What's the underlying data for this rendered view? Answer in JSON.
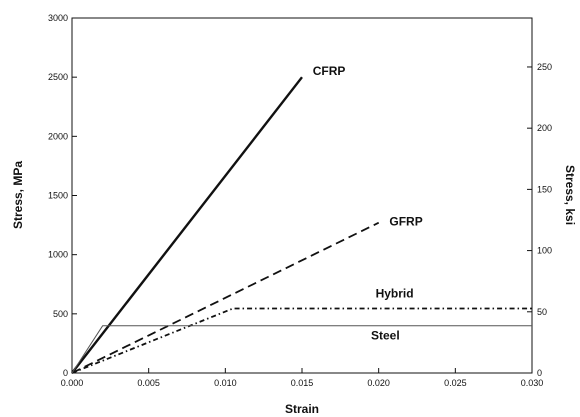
{
  "chart_data": {
    "type": "line",
    "title": "",
    "xlabel": "Strain",
    "ylabel": "Stress, MPa",
    "ylabel_right": "Stress, ksi",
    "xlim": [
      0,
      0.03
    ],
    "ylim": [
      0,
      3000
    ],
    "ylim_right": [
      0,
      290
    ],
    "x_ticks": [
      0,
      0.005,
      0.01,
      0.015,
      0.02,
      0.025,
      0.03
    ],
    "x_tick_labels": [
      "0.000",
      "0.005",
      "0.010",
      "0.015",
      "0.020",
      "0.025",
      "0.030"
    ],
    "y_ticks": [
      0,
      500,
      1000,
      1500,
      2000,
      2500,
      3000
    ],
    "y_tick_labels": [
      "0",
      "500",
      "1000",
      "1500",
      "2000",
      "2500",
      "3000"
    ],
    "y_right_ticks": [
      0,
      50,
      100,
      150,
      200,
      250
    ],
    "y_right_tick_labels": [
      "0",
      "50",
      "100",
      "150",
      "200",
      "250"
    ],
    "grid": false,
    "legend": "none",
    "series": [
      {
        "name": "CFRP",
        "style": "solid-bold",
        "color": "#111111",
        "points": [
          [
            0,
            0
          ],
          [
            0.015,
            2500
          ]
        ]
      },
      {
        "name": "GFRP",
        "style": "dashed",
        "color": "#111111",
        "points": [
          [
            0,
            0
          ],
          [
            0.02,
            1270
          ]
        ]
      },
      {
        "name": "Hybrid",
        "style": "dash-dot",
        "color": "#111111",
        "points": [
          [
            0,
            0
          ],
          [
            0.0105,
            545
          ],
          [
            0.03,
            545
          ]
        ]
      },
      {
        "name": "Steel",
        "style": "thin",
        "color": "#555555",
        "points": [
          [
            0,
            0
          ],
          [
            0.002,
            400
          ],
          [
            0.03,
            400
          ]
        ]
      }
    ],
    "annotations": [
      {
        "text": "CFRP",
        "x": 0.0157,
        "y": 2520
      },
      {
        "text": "GFRP",
        "x": 0.0207,
        "y": 1245
      },
      {
        "text": "Hybrid",
        "x": 0.0198,
        "y": 640
      },
      {
        "text": "Steel",
        "x": 0.0195,
        "y": 285
      }
    ]
  }
}
